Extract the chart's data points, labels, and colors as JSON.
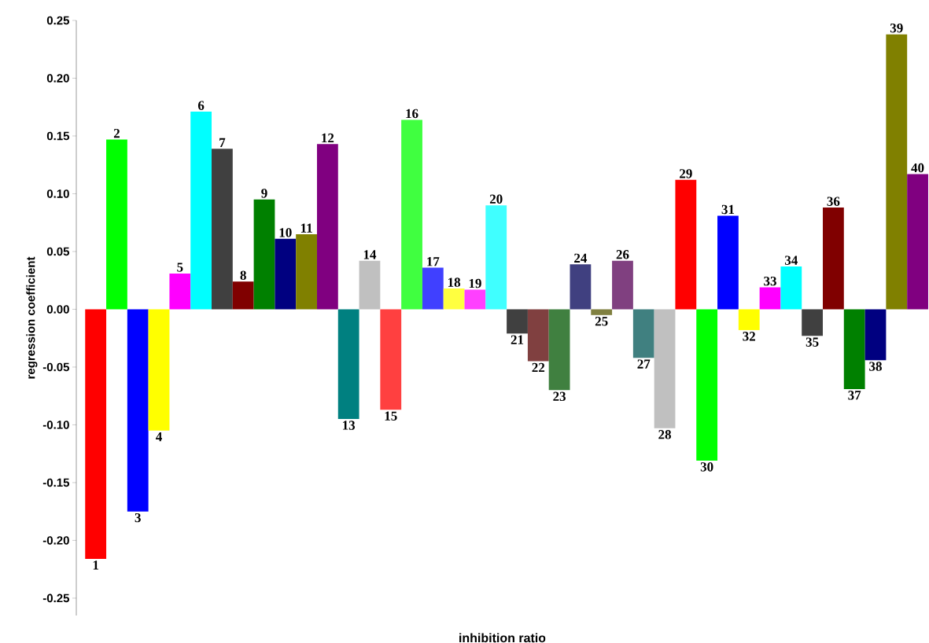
{
  "chart_data": {
    "type": "bar",
    "xlabel": "inhibition ratio",
    "ylabel": "regression coefficient",
    "categories": [
      "1",
      "2",
      "3",
      "4",
      "5",
      "6",
      "7",
      "8",
      "9",
      "10",
      "11",
      "12",
      "13",
      "14",
      "15",
      "16",
      "17",
      "18",
      "19",
      "20",
      "21",
      "22",
      "23",
      "24",
      "25",
      "26",
      "27",
      "28",
      "29",
      "30",
      "31",
      "32",
      "33",
      "34",
      "35",
      "36",
      "37",
      "38",
      "39",
      "40"
    ],
    "values": [
      -0.216,
      0.147,
      -0.175,
      -0.105,
      0.031,
      0.171,
      0.139,
      0.024,
      0.095,
      0.061,
      0.065,
      0.143,
      -0.095,
      0.042,
      -0.087,
      0.164,
      0.036,
      0.018,
      0.017,
      0.09,
      -0.021,
      -0.045,
      -0.07,
      0.039,
      -0.005,
      0.042,
      -0.042,
      -0.103,
      0.112,
      -0.131,
      0.081,
      -0.018,
      0.019,
      0.037,
      -0.023,
      0.088,
      -0.069,
      -0.044,
      0.238,
      0.117
    ],
    "colors": [
      "#ff0000",
      "#00ff00",
      "#0000ff",
      "#ffff00",
      "#ff00ff",
      "#00ffff",
      "#404040",
      "#800000",
      "#008000",
      "#000080",
      "#808000",
      "#800080",
      "#008080",
      "#c0c0c0",
      "#ff4040",
      "#40ff40",
      "#4040ff",
      "#ffff40",
      "#ff40ff",
      "#40ffff",
      "#404040",
      "#804040",
      "#408040",
      "#404080",
      "#808040",
      "#804080",
      "#408080",
      "#c0c0c0",
      "#ff0000",
      "#00ff00",
      "#0000ff",
      "#ffff00",
      "#ff00ff",
      "#00ffff",
      "#404040",
      "#800000",
      "#008000",
      "#000080",
      "#808000",
      "#800080"
    ],
    "ylim": [
      -0.265,
      0.25
    ],
    "yticks": [
      {
        "value": -0.25,
        "label": "-0.25"
      },
      {
        "value": -0.2,
        "label": "-0.20"
      },
      {
        "value": -0.15,
        "label": "-0.15"
      },
      {
        "value": -0.1,
        "label": "-0.10"
      },
      {
        "value": -0.05,
        "label": "-0.05"
      },
      {
        "value": 0,
        "label": "0.00"
      },
      {
        "value": 0.05,
        "label": "0.05"
      },
      {
        "value": 0.1,
        "label": "0.10"
      },
      {
        "value": 0.15,
        "label": "0.15"
      },
      {
        "value": 0.2,
        "label": "0.20"
      },
      {
        "value": 0.25,
        "label": "0.25"
      }
    ]
  }
}
